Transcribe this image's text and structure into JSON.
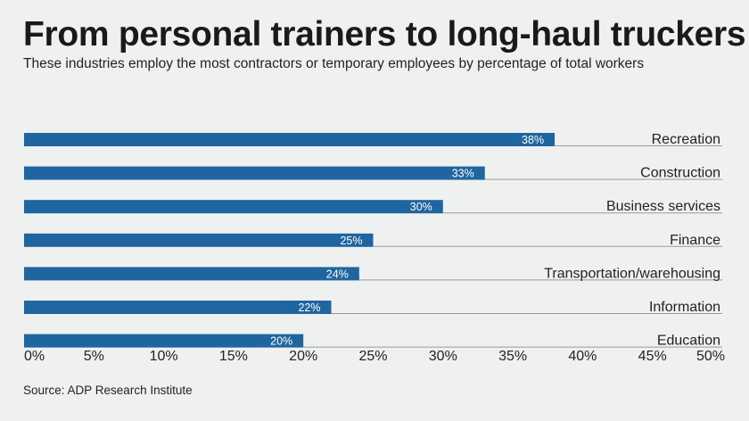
{
  "title": "From personal trainers to long-haul truckers",
  "subtitle": "These industries employ the most contractors or temporary employees by percentage of total workers",
  "source": "Source: ADP Research Institute",
  "colors": {
    "bar": "#1f65a0",
    "bar_label": "#ffffff",
    "rule": "#9a9a9a",
    "text": "#222222",
    "background": "#eff1f0"
  },
  "chart_data": {
    "type": "bar",
    "orientation": "horizontal",
    "categories": [
      "Recreation",
      "Construction",
      "Business services",
      "Finance",
      "Transportation/warehousing",
      "Information",
      "Education"
    ],
    "values": [
      38,
      33,
      30,
      25,
      24,
      22,
      20
    ],
    "value_labels": [
      "38%",
      "33%",
      "30%",
      "25%",
      "24%",
      "22%",
      "20%"
    ],
    "ticks": [
      0,
      5,
      10,
      15,
      20,
      25,
      30,
      35,
      40,
      45,
      50
    ],
    "tick_labels": [
      "0%",
      "5%",
      "10%",
      "15%",
      "20%",
      "25%",
      "30%",
      "35%",
      "40%",
      "45%",
      "50%"
    ],
    "xlim": [
      0,
      50
    ],
    "grid": false,
    "category_label_position": "right"
  }
}
